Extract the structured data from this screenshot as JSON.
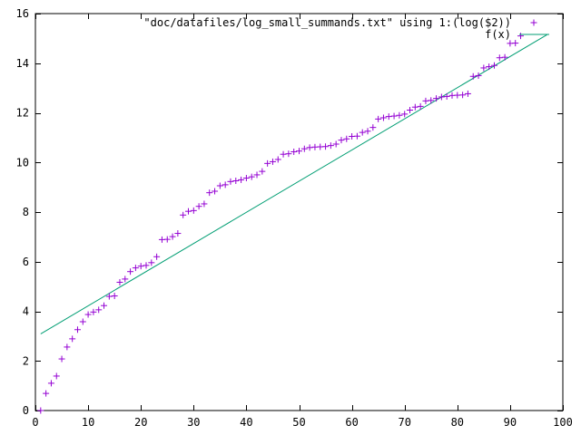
{
  "chart_data": {
    "type": "scatter",
    "xlim": [
      0,
      100
    ],
    "ylim": [
      0,
      16
    ],
    "x_ticks": [
      0,
      10,
      20,
      30,
      40,
      50,
      60,
      70,
      80,
      90,
      100
    ],
    "y_ticks": [
      0,
      2,
      4,
      6,
      8,
      10,
      12,
      14,
      16
    ],
    "grid": false,
    "legend_position": "top-right",
    "series": [
      {
        "name": "\"doc/datafiles/log_small_summands.txt\" using 1:(log($2))",
        "kind": "points",
        "marker": "plus",
        "color": "#9400d3",
        "x": [
          1,
          2,
          3,
          4,
          5,
          6,
          7,
          8,
          9,
          10,
          11,
          12,
          13,
          14,
          15,
          16,
          17,
          18,
          19,
          20,
          21,
          22,
          23,
          24,
          25,
          26,
          27,
          28,
          29,
          30,
          31,
          32,
          33,
          34,
          35,
          36,
          37,
          38,
          39,
          40,
          41,
          42,
          43,
          44,
          45,
          46,
          47,
          48,
          49,
          50,
          51,
          52,
          53,
          54,
          55,
          56,
          57,
          58,
          59,
          60,
          61,
          62,
          63,
          64,
          65,
          66,
          67,
          68,
          69,
          70,
          71,
          72,
          73,
          74,
          75,
          76,
          77,
          78,
          79,
          80,
          81,
          82,
          83,
          84,
          85,
          86,
          87,
          88,
          89,
          90,
          91,
          92
        ],
        "y": [
          0,
          0.69,
          1.1,
          1.39,
          2.08,
          2.56,
          2.89,
          3.26,
          3.58,
          3.87,
          3.97,
          4.06,
          4.23,
          4.6,
          4.62,
          5.17,
          5.3,
          5.6,
          5.75,
          5.82,
          5.85,
          5.96,
          6.2,
          6.89,
          6.9,
          7.01,
          7.14,
          7.88,
          8.03,
          8.06,
          8.23,
          8.33,
          8.78,
          8.84,
          9.06,
          9.1,
          9.23,
          9.26,
          9.3,
          9.37,
          9.42,
          9.5,
          9.64,
          9.96,
          10.03,
          10.12,
          10.33,
          10.35,
          10.43,
          10.46,
          10.55,
          10.6,
          10.62,
          10.63,
          10.64,
          10.68,
          10.74,
          10.9,
          10.95,
          11.05,
          11.06,
          11.21,
          11.26,
          11.41,
          11.75,
          11.8,
          11.85,
          11.87,
          11.9,
          11.95,
          12.11,
          12.23,
          12.26,
          12.48,
          12.5,
          12.58,
          12.64,
          12.66,
          12.7,
          12.71,
          12.72,
          12.77,
          13.47,
          13.5,
          13.81,
          13.86,
          13.91,
          14.22,
          14.24,
          14.8,
          14.81,
          15.1
        ]
      },
      {
        "name": "f(x)",
        "kind": "line",
        "color": "#009e73",
        "x": [
          1,
          97
        ],
        "y": [
          3.09,
          15.15
        ]
      }
    ]
  }
}
